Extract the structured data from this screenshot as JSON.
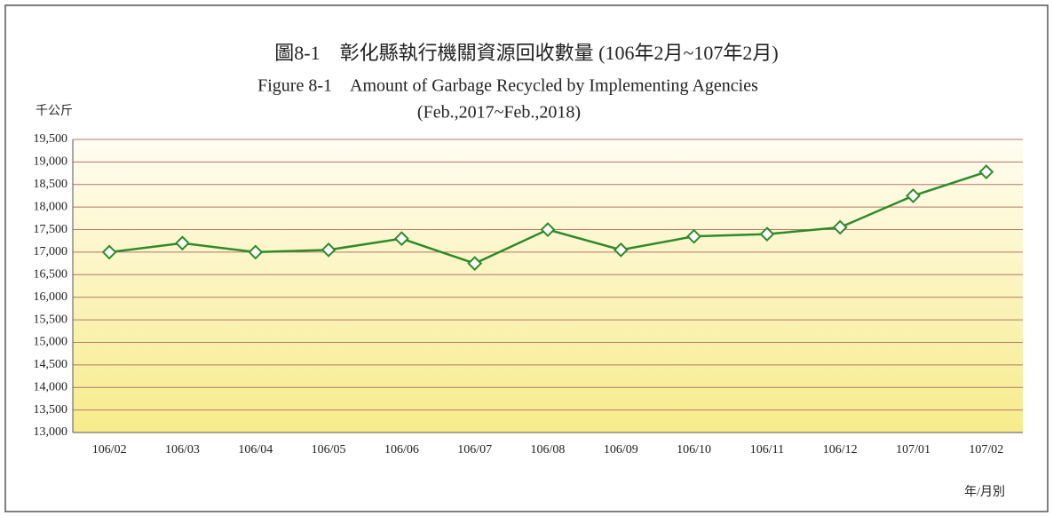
{
  "chart_data": {
    "type": "line",
    "title": "圖8-1　彰化縣執行機關資源回收數量 (106年2月~107年2月)",
    "subtitle": [
      "Figure 8-1　Amount of Garbage Recycled by Implementing Agencies",
      "(Feb.,2017~Feb.,2018)"
    ],
    "y_label": "千公斤",
    "x_label": "年/月別",
    "categories": [
      "106/02",
      "106/03",
      "106/04",
      "106/05",
      "106/06",
      "106/07",
      "106/08",
      "106/09",
      "106/10",
      "106/11",
      "106/12",
      "107/01",
      "107/02"
    ],
    "series": [
      {
        "name": "Amount",
        "color": "#2f8a2a",
        "values": [
          17000,
          17200,
          17000,
          17050,
          17300,
          16750,
          17500,
          17050,
          17350,
          17400,
          17550,
          18250,
          18780
        ]
      }
    ],
    "ylim": [
      13000,
      19500
    ],
    "yticks": [
      {
        "value": 13000,
        "label": "13,000"
      },
      {
        "value": 13500,
        "label": "13,500"
      },
      {
        "value": 14000,
        "label": "14,000"
      },
      {
        "value": 14500,
        "label": "14,500"
      },
      {
        "value": 15000,
        "label": "15,000"
      },
      {
        "value": 15500,
        "label": "15,500"
      },
      {
        "value": 16000,
        "label": "16,000"
      },
      {
        "value": 16500,
        "label": "16,500"
      },
      {
        "value": 17000,
        "label": "17,000"
      },
      {
        "value": 17500,
        "label": "17,500"
      },
      {
        "value": 18000,
        "label": "18,000"
      },
      {
        "value": 18500,
        "label": "18,500"
      },
      {
        "value": 19000,
        "label": "19,000"
      },
      {
        "value": 19500,
        "label": "19,500"
      }
    ],
    "grid": true
  }
}
